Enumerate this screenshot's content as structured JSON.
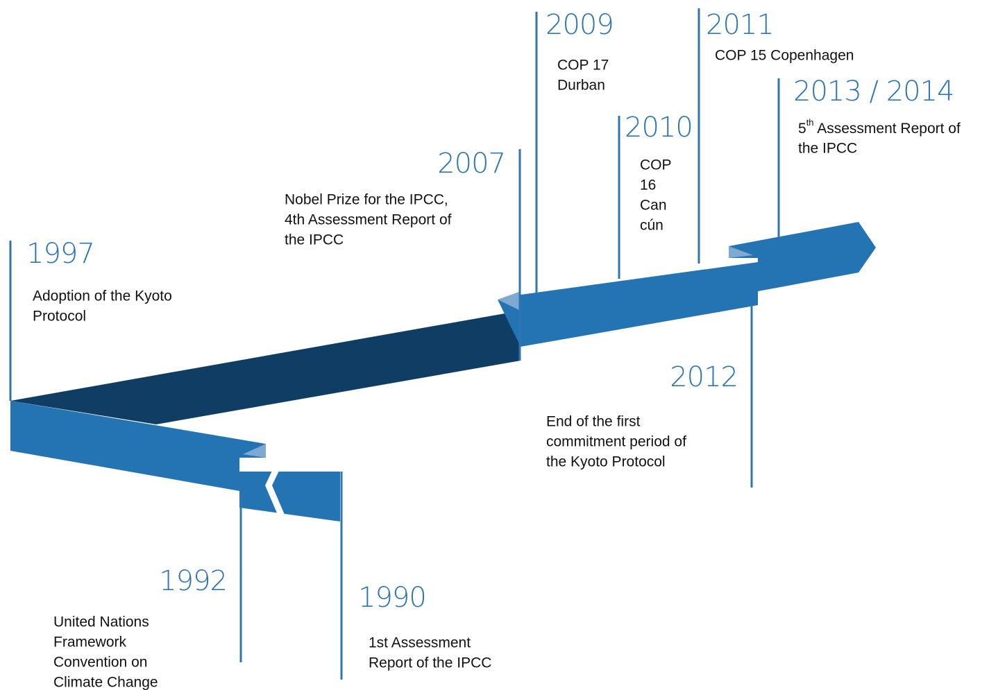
{
  "events": [
    {
      "year": "1997",
      "lines": [
        "Adoption of the Kyoto",
        "Protocol"
      ]
    },
    {
      "year": "2007",
      "lines": [
        "Nobel Prize for the IPCC,",
        "4th Assessment Report of",
        "the IPCC"
      ]
    },
    {
      "year": "2009",
      "lines": [
        "COP 17",
        "Durban"
      ]
    },
    {
      "year": "2010",
      "lines": [
        "COP",
        "16",
        "Can",
        "cún"
      ]
    },
    {
      "year": "2011",
      "lines": [
        "COP 15 Copenhagen"
      ]
    },
    {
      "year": "2013 / 2014",
      "ordinal": "5",
      "ordinal_suffix": "th",
      "lines": [
        " Assessment Report of",
        "the IPCC"
      ]
    },
    {
      "year": "2012",
      "lines": [
        "End of the first",
        "commitment period of",
        "the Kyoto Protocol"
      ]
    },
    {
      "year": "1992",
      "lines": [
        "United Nations",
        "Framework",
        "Convention on",
        "Climate Change"
      ]
    },
    {
      "year": "1990",
      "lines": [
        "1st Assessment",
        "Report of the IPCC"
      ]
    }
  ]
}
